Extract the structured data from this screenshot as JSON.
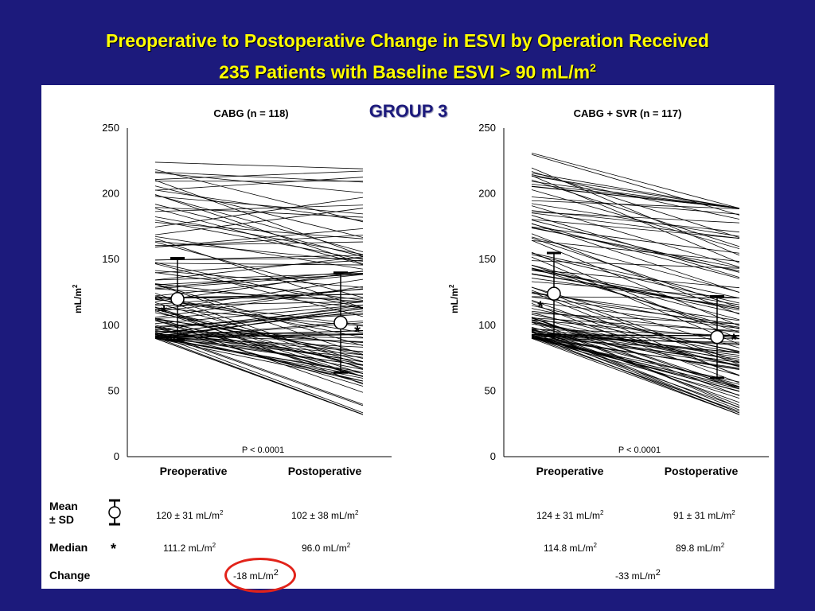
{
  "title": {
    "line1": "Preoperative to Postoperative Change in ESVI by Operation Received",
    "line2": "235 Patients with Baseline ESVI > 90 mL/m",
    "line2_sup": "2"
  },
  "group_label": "GROUP 3",
  "stats_table": {
    "mean_label_line1": "Mean",
    "mean_label_line2": "± SD",
    "median_label": "Median",
    "median_symbol": "*",
    "change_label": "Change",
    "cabg": {
      "pre_mean": "120 ± 31 mL/m",
      "post_mean": "102 ± 38 mL/m",
      "pre_median": "111.2 mL/m",
      "post_median": "96.0 mL/m",
      "change": "-18 mL/m"
    },
    "svr": {
      "pre_mean": "124 ± 31 mL/m",
      "post_mean": "91 ± 31 mL/m",
      "pre_median": "114.8 mL/m",
      "post_median": "89.8 mL/m",
      "change": "-33 mL/m"
    },
    "sup": "2"
  },
  "colors": {
    "background": "#1c1a7c",
    "title": "#ffff00",
    "highlight": "#e2231a"
  },
  "chart_data": [
    {
      "type": "line",
      "title": "CABG (n = 118)",
      "ylabel": "mL/m",
      "ylabel_sup": "2",
      "x": [
        "Preoperative",
        "Postoperative"
      ],
      "ylim": [
        0,
        250
      ],
      "yticks": [
        0,
        50,
        100,
        150,
        200,
        250
      ],
      "pvalue": "P < 0.0001",
      "n_lines": 118,
      "pre_range": [
        90,
        224
      ],
      "post_range": [
        32,
        224
      ],
      "mean_sd": {
        "pre": [
          120,
          31
        ],
        "post": [
          102,
          38
        ]
      },
      "median": {
        "pre": 111.2,
        "post": 96.0
      }
    },
    {
      "type": "line",
      "title": "CABG + SVR (n = 117)",
      "ylabel": "mL/m",
      "ylabel_sup": "2",
      "x": [
        "Preoperative",
        "Postoperative"
      ],
      "ylim": [
        0,
        250
      ],
      "yticks": [
        0,
        50,
        100,
        150,
        200,
        250
      ],
      "pvalue": "P < 0.0001",
      "n_lines": 117,
      "pre_range": [
        90,
        231
      ],
      "post_range": [
        32,
        189
      ],
      "mean_sd": {
        "pre": [
          124,
          31
        ],
        "post": [
          91,
          31
        ]
      },
      "median": {
        "pre": 114.8,
        "post": 89.8
      }
    }
  ]
}
